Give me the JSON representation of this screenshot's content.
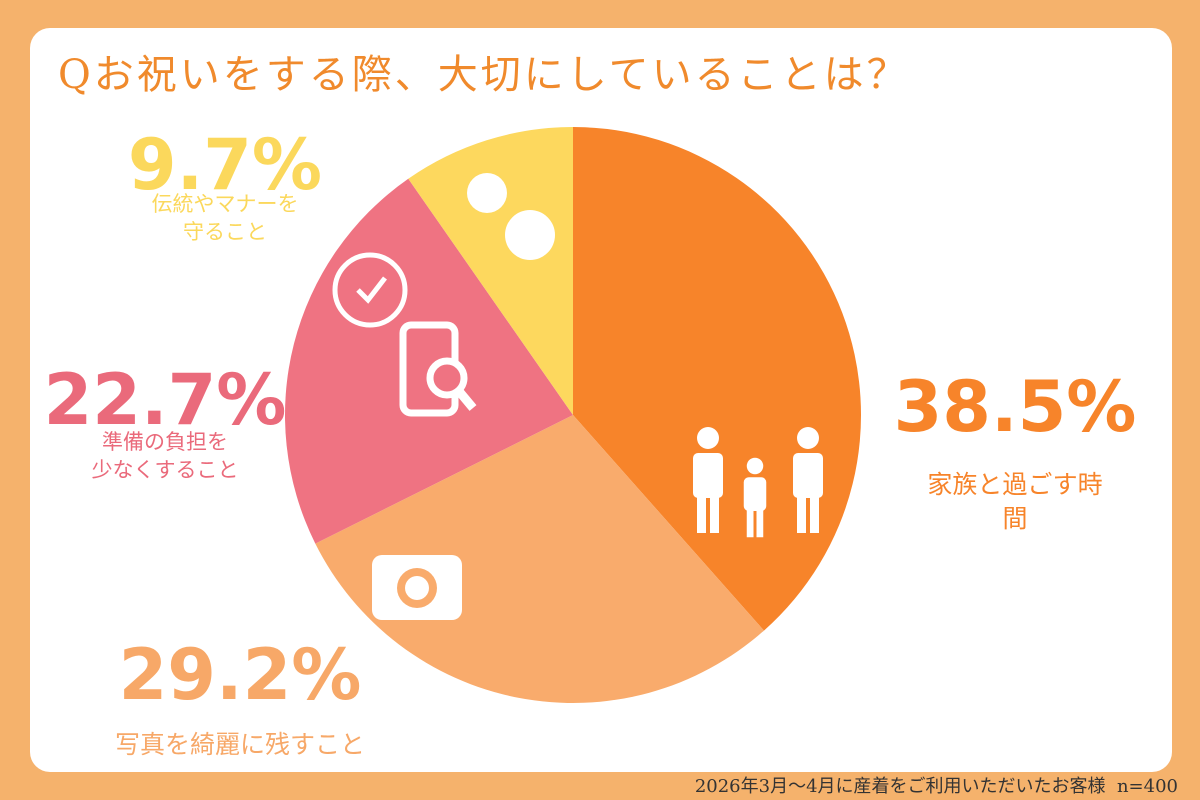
{
  "chart_data": {
    "type": "pie",
    "title": "Qお祝いをする際、大切にしていることは？",
    "categories": [
      "家族と過ごす時間",
      "写真を綺麗に残すこと",
      "準備の負担を\n少なくすること",
      "伝統やマナーを\n守ること"
    ],
    "values": [
      38.5,
      29.2,
      22.7,
      9.7
    ],
    "value_labels": [
      "38.5%",
      "29.2%",
      "22.7%",
      "9.7%"
    ],
    "colors": [
      "#f7842a",
      "#f9ab6c",
      "#ef7382",
      "#fdd85e"
    ],
    "note": "2026年3月〜4月に産着をご利用いただいたお客様  n=400"
  }
}
